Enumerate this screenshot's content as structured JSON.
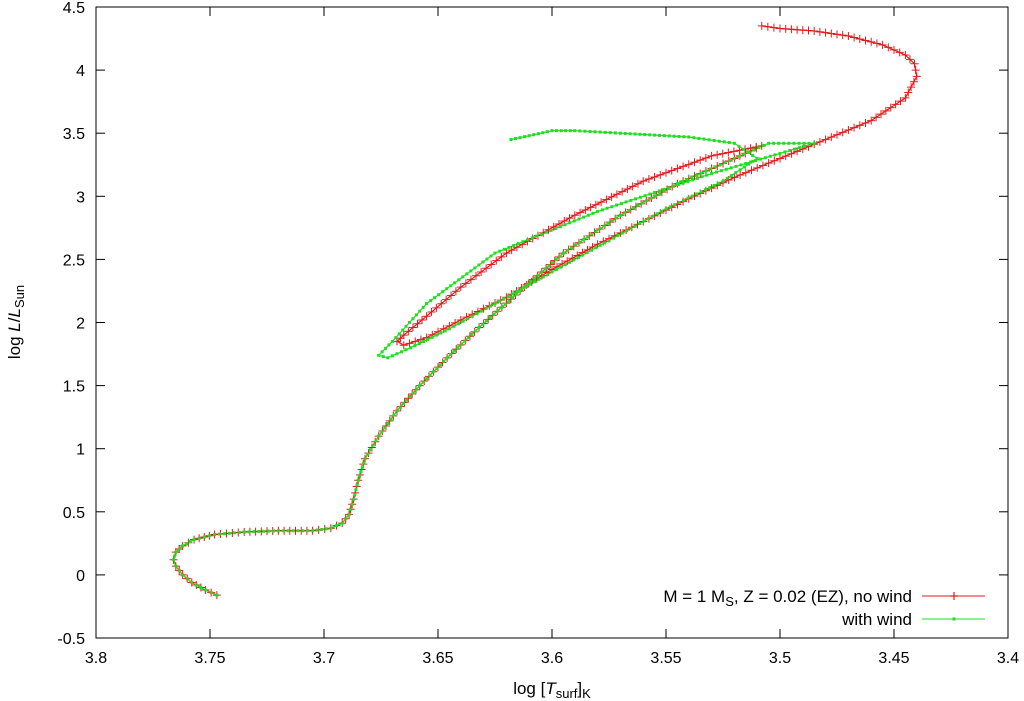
{
  "chart_data": {
    "type": "line",
    "xlabel": {
      "base": "log [",
      "italic": "T",
      "sub": "surf",
      "close": "]",
      "sub2": "K"
    },
    "ylabel": {
      "base": "log ",
      "italic": "L",
      "slash": "/",
      "italic2": "L",
      "sub": "Sun"
    },
    "x_reversed": true,
    "xlim": [
      3.8,
      3.4
    ],
    "ylim": [
      -0.5,
      4.5
    ],
    "xticks": [
      "3.8",
      "3.75",
      "3.7",
      "3.65",
      "3.6",
      "3.55",
      "3.5",
      "3.45",
      "3.4"
    ],
    "yticks": [
      "-0.5",
      "0",
      "0.5",
      "1",
      "1.5",
      "2",
      "2.5",
      "3",
      "3.5",
      "4",
      "4.5"
    ],
    "grid": false,
    "legend_position": "bottom-right",
    "series": [
      {
        "name": "M = 1 M_S, Z = 0.02 (EZ), no wind",
        "legend": {
          "pre": "M = 1 M",
          "sub": "S",
          "post": ", Z = 0.02 (EZ), no wind"
        },
        "color": "#e41a1c",
        "marker": "plus",
        "points": [
          [
            3.747,
            -0.16
          ],
          [
            3.752,
            -0.12
          ],
          [
            3.758,
            -0.06
          ],
          [
            3.762,
            0.0
          ],
          [
            3.765,
            0.07
          ],
          [
            3.766,
            0.12
          ],
          [
            3.765,
            0.18
          ],
          [
            3.762,
            0.23
          ],
          [
            3.757,
            0.28
          ],
          [
            3.748,
            0.32
          ],
          [
            3.735,
            0.34
          ],
          [
            3.72,
            0.35
          ],
          [
            3.705,
            0.35
          ],
          [
            3.697,
            0.37
          ],
          [
            3.692,
            0.41
          ],
          [
            3.689,
            0.48
          ],
          [
            3.687,
            0.6
          ],
          [
            3.685,
            0.75
          ],
          [
            3.682,
            0.92
          ],
          [
            3.676,
            1.1
          ],
          [
            3.668,
            1.3
          ],
          [
            3.658,
            1.5
          ],
          [
            3.646,
            1.72
          ],
          [
            3.632,
            1.96
          ],
          [
            3.614,
            2.25
          ],
          [
            3.595,
            2.55
          ],
          [
            3.57,
            2.85
          ],
          [
            3.545,
            3.1
          ],
          [
            3.52,
            3.3
          ],
          [
            3.508,
            3.4
          ],
          [
            3.53,
            3.32
          ],
          [
            3.56,
            3.12
          ],
          [
            3.59,
            2.85
          ],
          [
            3.62,
            2.55
          ],
          [
            3.64,
            2.28
          ],
          [
            3.655,
            2.05
          ],
          [
            3.665,
            1.9
          ],
          [
            3.668,
            1.85
          ],
          [
            3.665,
            1.82
          ],
          [
            3.655,
            1.88
          ],
          [
            3.64,
            2.02
          ],
          [
            3.62,
            2.2
          ],
          [
            3.6,
            2.42
          ],
          [
            3.58,
            2.62
          ],
          [
            3.56,
            2.8
          ],
          [
            3.54,
            2.98
          ],
          [
            3.52,
            3.15
          ],
          [
            3.5,
            3.3
          ],
          [
            3.48,
            3.45
          ],
          [
            3.46,
            3.6
          ],
          [
            3.445,
            3.78
          ],
          [
            3.44,
            3.95
          ],
          [
            3.441,
            4.05
          ],
          [
            3.445,
            4.12
          ],
          [
            3.455,
            4.2
          ],
          [
            3.47,
            4.27
          ],
          [
            3.485,
            4.31
          ],
          [
            3.5,
            4.33
          ],
          [
            3.508,
            4.35
          ]
        ]
      },
      {
        "name": "with wind",
        "legend": {
          "pre": "with wind",
          "sub": "",
          "post": ""
        },
        "color": "#22dd22",
        "marker": "square",
        "points": [
          [
            3.747,
            -0.16
          ],
          [
            3.752,
            -0.12
          ],
          [
            3.758,
            -0.06
          ],
          [
            3.762,
            0.0
          ],
          [
            3.765,
            0.07
          ],
          [
            3.766,
            0.12
          ],
          [
            3.765,
            0.18
          ],
          [
            3.762,
            0.23
          ],
          [
            3.757,
            0.28
          ],
          [
            3.748,
            0.32
          ],
          [
            3.735,
            0.34
          ],
          [
            3.72,
            0.35
          ],
          [
            3.705,
            0.35
          ],
          [
            3.697,
            0.37
          ],
          [
            3.692,
            0.41
          ],
          [
            3.689,
            0.48
          ],
          [
            3.687,
            0.6
          ],
          [
            3.685,
            0.75
          ],
          [
            3.682,
            0.92
          ],
          [
            3.676,
            1.1
          ],
          [
            3.668,
            1.3
          ],
          [
            3.658,
            1.5
          ],
          [
            3.646,
            1.72
          ],
          [
            3.632,
            1.96
          ],
          [
            3.614,
            2.25
          ],
          [
            3.595,
            2.55
          ],
          [
            3.57,
            2.85
          ],
          [
            3.545,
            3.1
          ],
          [
            3.52,
            3.3
          ],
          [
            3.505,
            3.42
          ],
          [
            3.485,
            3.42
          ],
          [
            3.53,
            3.18
          ],
          [
            3.58,
            2.88
          ],
          [
            3.625,
            2.55
          ],
          [
            3.655,
            2.15
          ],
          [
            3.67,
            1.85
          ],
          [
            3.676,
            1.74
          ],
          [
            3.672,
            1.72
          ],
          [
            3.662,
            1.8
          ],
          [
            3.645,
            1.95
          ],
          [
            3.625,
            2.15
          ],
          [
            3.6,
            2.4
          ],
          [
            3.575,
            2.65
          ],
          [
            3.55,
            2.9
          ],
          [
            3.525,
            3.12
          ],
          [
            3.51,
            3.3
          ],
          [
            3.52,
            3.42
          ],
          [
            3.54,
            3.47
          ],
          [
            3.57,
            3.5
          ],
          [
            3.59,
            3.52
          ],
          [
            3.6,
            3.52
          ],
          [
            3.61,
            3.48
          ],
          [
            3.618,
            3.45
          ]
        ]
      }
    ]
  }
}
